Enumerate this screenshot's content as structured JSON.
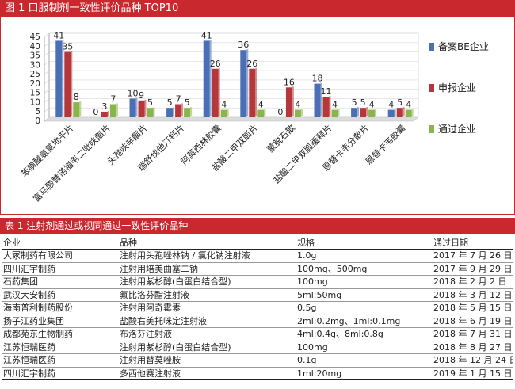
{
  "figure": {
    "title": "图 1   口服制剂一致性评价品种 TOP10"
  },
  "chart_data": {
    "type": "bar",
    "title": "口服制剂一致性评价品种 TOP10",
    "categories": [
      "苯磺酸氨氯地平片",
      "富马酸替诺福韦二吡呋酯片",
      "头孢呋辛酯片",
      "瑞舒伐他汀钙片",
      "阿莫西林胶囊",
      "盐酸二甲双胍片",
      "蒙脱石散",
      "盐酸二甲双胍缓释片",
      "恩替卡韦分散片",
      "恩替卡韦胶囊"
    ],
    "series": [
      {
        "name": "备案BE企业",
        "color": "#4a6fb5",
        "values": [
          41,
          0,
          10,
          5,
          41,
          36,
          0,
          18,
          5,
          4
        ]
      },
      {
        "name": "申报企业",
        "color": "#b5373a",
        "values": [
          35,
          3,
          9,
          7,
          26,
          26,
          16,
          11,
          5,
          5
        ]
      },
      {
        "name": "通过企业",
        "color": "#8ab54a",
        "values": [
          8,
          7,
          5,
          5,
          4,
          4,
          4,
          4,
          4,
          4
        ]
      }
    ],
    "ylim": [
      0,
      45
    ],
    "yticks": [
      0,
      5,
      10,
      15,
      20,
      25,
      30,
      35,
      40,
      45
    ],
    "xlabel": "",
    "ylabel": "",
    "legend": "right"
  },
  "table": {
    "title": "表 1   注射剂通过或视同通过一致性评价品种",
    "headers": [
      "企业",
      "品种",
      "规格",
      "通过日期"
    ],
    "rows": [
      [
        "大冢制药有限公司",
        "注射用头孢唑林钠 / 氯化钠注射液",
        "1.0g",
        "2017 年 7 月 26 日"
      ],
      [
        "四川汇宇制药",
        "注射用培美曲塞二钠",
        "100mg、500mg",
        "2017 年 9 月 29 日"
      ],
      [
        "石药集团",
        "注射用紫杉醇(白蛋白结合型)",
        "100mg",
        "2018 年 2 月 2 日"
      ],
      [
        "武汉大安制药",
        "氟比洛芬酯注射液",
        "5ml:50mg",
        "2018 年 3 月 12 日"
      ],
      [
        "海南普利制药股份",
        "注射用阿奇霉素",
        "0.5g",
        "2018 年 5 月 15 日"
      ],
      [
        "扬子江药业集团",
        "盐酸右美托咪定注射液",
        "2ml:0.2mg、1ml:0.1mg",
        "2018 年 6 月 19 日"
      ],
      [
        "成都苑东生物制药",
        "布洛芬注射液",
        "4ml:0.4g、8ml:0.8g",
        "2018 年 7 月 31 日"
      ],
      [
        "江苏恒瑞医药",
        "注射用紫杉醇(白蛋白结合型)",
        "100mg",
        "2018 年 8 月 27 日"
      ],
      [
        "江苏恒瑞医药",
        "注射用替莫唑胺",
        "0.1g",
        "2018 年 12 月 24 日"
      ],
      [
        "四川汇宇制药",
        "多西他赛注射液",
        "1ml:20mg",
        "2019 年 1 月 15 日"
      ]
    ]
  }
}
